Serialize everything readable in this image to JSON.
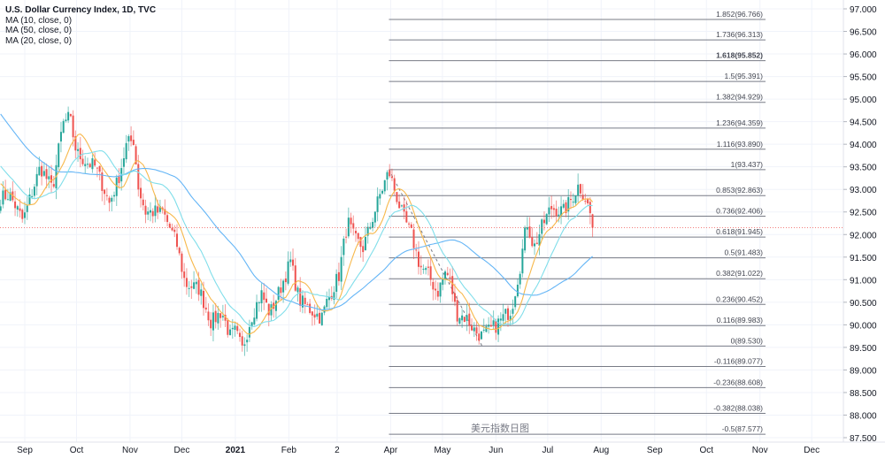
{
  "chart_data": {
    "type": "candlestick",
    "title": "U.S. Dollar Currency Index, 1D, TVC",
    "indicators": [
      {
        "label": "MA (10, close, 0)",
        "period": 10,
        "color": "#f7b84b"
      },
      {
        "label": "MA (50, close, 0)",
        "period": 50,
        "color": "#64b5f6"
      },
      {
        "label": "MA (20, close, 0)",
        "period": 20,
        "color": "#80deea"
      }
    ],
    "up_color": "#26a69a",
    "down_color": "#ef5350",
    "ylim": [
      87.5,
      97.0
    ],
    "y_ticks": [
      "87.500",
      "88.000",
      "88.500",
      "89.000",
      "89.500",
      "90.000",
      "90.500",
      "91.000",
      "91.500",
      "92.000",
      "92.500",
      "93.000",
      "93.500",
      "94.000",
      "94.500",
      "95.000",
      "95.500",
      "96.000",
      "96.500",
      "97.000"
    ],
    "x_ticks": [
      {
        "label": "Sep",
        "date": "2020-09-01"
      },
      {
        "label": "Oct",
        "date": "2020-10-01"
      },
      {
        "label": "Nov",
        "date": "2020-11-01"
      },
      {
        "label": "Dec",
        "date": "2020-12-01"
      },
      {
        "label": "2021",
        "date": "2021-01-01",
        "bold": true
      },
      {
        "label": "Feb",
        "date": "2021-02-01"
      },
      {
        "label": "2",
        "date": "2021-03-01"
      },
      {
        "label": "Apr",
        "date": "2021-04-01"
      },
      {
        "label": "May",
        "date": "2021-05-01"
      },
      {
        "label": "Jun",
        "date": "2021-06-01"
      },
      {
        "label": "Jul",
        "date": "2021-07-01"
      },
      {
        "label": "Aug",
        "date": "2021-08-01"
      },
      {
        "label": "Sep",
        "date": "2021-09-01"
      },
      {
        "label": "Oct",
        "date": "2021-10-01"
      },
      {
        "label": "Nov",
        "date": "2021-11-01"
      },
      {
        "label": "Dec",
        "date": "2021-12-01"
      }
    ],
    "close_path": [
      [
        "2020-08-18",
        92.8
      ],
      [
        "2020-08-23",
        92.9
      ],
      [
        "2020-08-31",
        92.3
      ],
      [
        "2020-09-04",
        92.8
      ],
      [
        "2020-09-10",
        93.5
      ],
      [
        "2020-09-17",
        93.0
      ],
      [
        "2020-09-23",
        94.45
      ],
      [
        "2020-09-27",
        94.6
      ],
      [
        "2020-10-01",
        93.8
      ],
      [
        "2020-10-07",
        93.6
      ],
      [
        "2020-10-12",
        93.5
      ],
      [
        "2020-10-20",
        92.7
      ],
      [
        "2020-10-25",
        93.2
      ],
      [
        "2020-10-30",
        94.0
      ],
      [
        "2020-11-03",
        94.1
      ],
      [
        "2020-11-06",
        93.0
      ],
      [
        "2020-11-10",
        92.5
      ],
      [
        "2020-11-20",
        92.5
      ],
      [
        "2020-11-28",
        91.8
      ],
      [
        "2020-12-03",
        90.9
      ],
      [
        "2020-12-11",
        90.8
      ],
      [
        "2020-12-18",
        90.05
      ],
      [
        "2020-12-24",
        90.3
      ],
      [
        "2020-12-29",
        89.75
      ],
      [
        "2021-01-01",
        89.85
      ],
      [
        "2021-01-05",
        89.45
      ],
      [
        "2021-01-10",
        90.15
      ],
      [
        "2021-01-16",
        90.7
      ],
      [
        "2021-01-21",
        90.25
      ],
      [
        "2021-01-26",
        90.7
      ],
      [
        "2021-02-02",
        91.4
      ],
      [
        "2021-02-07",
        90.55
      ],
      [
        "2021-02-13",
        90.35
      ],
      [
        "2021-02-20",
        90.15
      ],
      [
        "2021-02-23",
        90.5
      ],
      [
        "2021-03-02",
        91.1
      ],
      [
        "2021-03-07",
        92.3
      ],
      [
        "2021-03-11",
        91.9
      ],
      [
        "2021-03-16",
        91.7
      ],
      [
        "2021-03-21",
        92.3
      ],
      [
        "2021-03-26",
        92.9
      ],
      [
        "2021-03-31",
        93.4
      ],
      [
        "2021-04-04",
        92.9
      ],
      [
        "2021-04-08",
        92.4
      ],
      [
        "2021-04-13",
        92.0
      ],
      [
        "2021-04-18",
        91.3
      ],
      [
        "2021-04-23",
        91.1
      ],
      [
        "2021-04-28",
        90.7
      ],
      [
        "2021-05-03",
        91.2
      ],
      [
        "2021-05-06",
        90.9
      ],
      [
        "2021-05-09",
        90.25
      ],
      [
        "2021-05-15",
        90.15
      ],
      [
        "2021-05-20",
        89.85
      ],
      [
        "2021-05-24",
        89.75
      ],
      [
        "2021-05-31",
        89.95
      ],
      [
        "2021-06-05",
        90.15
      ],
      [
        "2021-06-10",
        90.35
      ],
      [
        "2021-06-15",
        91.3
      ],
      [
        "2021-06-19",
        92.3
      ],
      [
        "2021-06-23",
        91.7
      ],
      [
        "2021-06-28",
        92.2
      ],
      [
        "2021-07-03",
        92.6
      ],
      [
        "2021-07-10",
        92.5
      ],
      [
        "2021-07-15",
        92.8
      ],
      [
        "2021-07-19",
        93.1
      ],
      [
        "2021-07-23",
        92.8
      ],
      [
        "2021-07-26",
        92.4
      ],
      [
        "2021-07-28",
        92.15
      ]
    ],
    "last_price": 92.15,
    "fibonacci": {
      "start": [
        "2021-03-31",
        93.437
      ],
      "end": [
        "2021-05-24",
        89.53
      ],
      "levels": [
        {
          "label": "1.852(96.766)",
          "price": 96.766
        },
        {
          "label": "1.736(96.313)",
          "price": 96.313
        },
        {
          "label": "1.618(95.852)",
          "price": 95.852,
          "bold": true
        },
        {
          "label": "1.5(95.391)",
          "price": 95.391
        },
        {
          "label": "1.382(94.929)",
          "price": 94.929
        },
        {
          "label": "1.236(94.359)",
          "price": 94.359
        },
        {
          "label": "1.116(93.890)",
          "price": 93.89
        },
        {
          "label": "1(93.437)",
          "price": 93.437
        },
        {
          "label": "0.853(92.863)",
          "price": 92.863
        },
        {
          "label": "0.736(92.406)",
          "price": 92.406
        },
        {
          "label": "0.618(91.945)",
          "price": 91.945
        },
        {
          "label": "0.5(91.483)",
          "price": 91.483
        },
        {
          "label": "0.382(91.022)",
          "price": 91.022
        },
        {
          "label": "0.236(90.452)",
          "price": 90.452
        },
        {
          "label": "0.116(89.983)",
          "price": 89.983
        },
        {
          "label": "0(89.530)",
          "price": 89.53
        },
        {
          "label": "-0.116(89.077)",
          "price": 89.077
        },
        {
          "label": "-0.236(88.608)",
          "price": 88.608
        },
        {
          "label": "-0.382(88.038)",
          "price": 88.038
        },
        {
          "label": "-0.5(87.577)",
          "price": 87.577
        }
      ],
      "line_color": "#787b86"
    },
    "watermark": "美元指数日图"
  }
}
